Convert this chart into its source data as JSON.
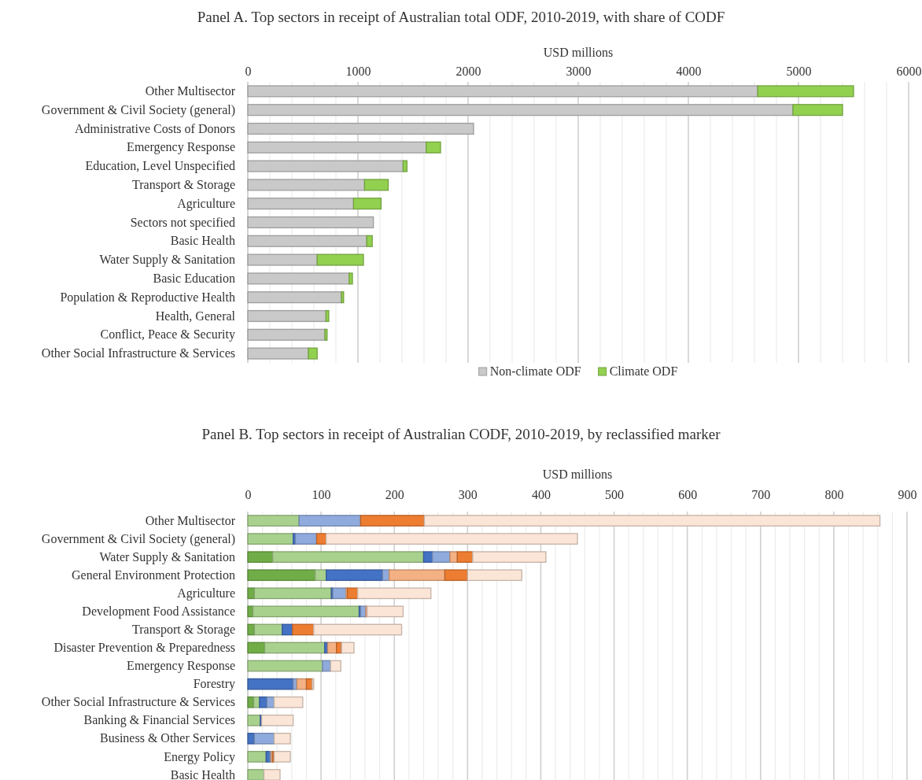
{
  "chart_data": [
    {
      "type": "bar",
      "orientation": "horizontal",
      "stacked": true,
      "title": "Panel A. Top sectors in receipt of Australian total ODF, 2010-2019, with share of CODF",
      "xlabel": "USD millions",
      "categories": [
        "Other Multisector",
        "Government & Civil Society (general)",
        "Administrative Costs of Donors",
        "Emergency Response",
        "Education, Level Unspecified",
        "Transport & Storage",
        "Agriculture",
        "Sectors not specified",
        "Basic Health",
        "Water Supply & Sanitation",
        "Basic Education",
        "Population & Reproductive Health",
        "Health, General",
        "Conflict, Peace & Security",
        "Other Social Infrastructure & Services"
      ],
      "series": [
        {
          "name": "Non-climate ODF",
          "color": "#c9c9c9",
          "values": [
            4630,
            4950,
            2050,
            1620,
            1410,
            1060,
            960,
            1140,
            1080,
            630,
            920,
            850,
            710,
            700,
            550
          ]
        },
        {
          "name": "Climate ODF",
          "color": "#92d050",
          "values": [
            870,
            450,
            0,
            130,
            35,
            215,
            250,
            0,
            50,
            420,
            30,
            20,
            25,
            20,
            80
          ]
        }
      ],
      "xlim": [
        0,
        6000
      ],
      "xticks": [
        0,
        {
          "value": 200,
          "label": null
        },
        {
          "value": 400,
          "label": null
        },
        {
          "value": 600,
          "label": null
        },
        {
          "value": 800,
          "label": null
        },
        1000,
        {
          "value": 1200,
          "label": null
        },
        {
          "value": 1400,
          "label": null
        },
        {
          "value": 1600,
          "label": null
        },
        {
          "value": 1800,
          "label": null
        },
        2000,
        {
          "value": 2200,
          "label": null
        },
        {
          "value": 2400,
          "label": null
        },
        {
          "value": 2600,
          "label": null
        },
        {
          "value": 2800,
          "label": null
        },
        3000,
        {
          "value": 3200,
          "label": null
        },
        {
          "value": 3400,
          "label": null
        },
        {
          "value": 3600,
          "label": null
        },
        {
          "value": 3800,
          "label": null
        },
        4000,
        {
          "value": 4200,
          "label": null
        },
        {
          "value": 4400,
          "label": null
        },
        {
          "value": 4600,
          "label": null
        },
        {
          "value": 4800,
          "label": null
        },
        5000,
        {
          "value": 5200,
          "label": null
        },
        {
          "value": 5400,
          "label": null
        },
        {
          "value": 5600,
          "label": null
        },
        {
          "value": 5800,
          "label": null
        },
        6000
      ],
      "grid": "x",
      "legend": "bottom"
    },
    {
      "type": "bar",
      "orientation": "horizontal",
      "stacked": true,
      "title": "Panel B. Top sectors in receipt of Australian CODF, 2010-2019, by reclassified marker",
      "xlabel": "USD millions",
      "categories": [
        "Other Multisector",
        "Government & Civil Society (general)",
        "Water Supply & Sanitation",
        "General Environment Protection",
        "Agriculture",
        "Development Food Assistance",
        "Transport & Storage",
        "Disaster Prevention & Preparedness",
        "Emergency Response",
        "Forestry",
        "Other Social Infrastructure & Services",
        "Banking & Financial Services",
        "Business & Other Services",
        "Energy Policy",
        "Basic Health"
      ],
      "series": [
        {
          "color": "#70ad47",
          "values": [
            0,
            0,
            34,
            92,
            9,
            7,
            9,
            23,
            0,
            0,
            8,
            0,
            0,
            0,
            0
          ]
        },
        {
          "color": "#a9d18e",
          "values": [
            70,
            62,
            206,
            15,
            105,
            145,
            38,
            82,
            102,
            0,
            8,
            17,
            0,
            25,
            22
          ]
        },
        {
          "color": "#4472c4",
          "values": [
            0,
            3,
            12,
            77,
            2,
            2,
            14,
            4,
            0,
            62,
            10,
            2,
            9,
            5,
            null
          ]
        },
        {
          "color": "#8faadc",
          "values": [
            84,
            29,
            24,
            9,
            18,
            7,
            0,
            0,
            11,
            5,
            10,
            0,
            27,
            2,
            0
          ]
        },
        {
          "color": "#f4b183",
          "values": [
            0,
            0,
            10,
            76,
            2,
            2,
            0,
            12,
            0,
            13,
            0,
            0,
            0,
            2,
            0
          ]
        },
        {
          "color": "#ed7d31",
          "values": [
            87,
            13,
            21,
            31,
            14,
            0,
            29,
            7,
            0,
            8,
            0,
            0,
            0,
            2,
            0
          ]
        },
        {
          "color": "#fbe5d6",
          "values": [
            622,
            343,
            100,
            74,
            100,
            49,
            120,
            17,
            14,
            2,
            39,
            43,
            22,
            22,
            22
          ]
        }
      ],
      "xlim": [
        0,
        900
      ],
      "xticks": [
        0,
        {
          "value": 20,
          "label": null
        },
        {
          "value": 40,
          "label": null
        },
        {
          "value": 60,
          "label": null
        },
        {
          "value": 80,
          "label": null
        },
        100,
        {
          "value": 120,
          "label": null
        },
        {
          "value": 140,
          "label": null
        },
        {
          "value": 160,
          "label": null
        },
        {
          "value": 180,
          "label": null
        },
        200,
        {
          "value": 220,
          "label": null
        },
        {
          "value": 240,
          "label": null
        },
        {
          "value": 260,
          "label": null
        },
        {
          "value": 280,
          "label": null
        },
        300,
        {
          "value": 320,
          "label": null
        },
        {
          "value": 340,
          "label": null
        },
        {
          "value": 360,
          "label": null
        },
        {
          "value": 380,
          "label": null
        },
        400,
        {
          "value": 420,
          "label": null
        },
        {
          "value": 440,
          "label": null
        },
        {
          "value": 460,
          "label": null
        },
        {
          "value": 480,
          "label": null
        },
        500,
        {
          "value": 520,
          "label": null
        },
        {
          "value": 540,
          "label": null
        },
        {
          "value": 560,
          "label": null
        },
        {
          "value": 580,
          "label": null
        },
        600,
        {
          "value": 620,
          "label": null
        },
        {
          "value": 640,
          "label": null
        },
        {
          "value": 660,
          "label": null
        },
        {
          "value": 680,
          "label": null
        },
        700,
        {
          "value": 720,
          "label": null
        },
        {
          "value": 740,
          "label": null
        },
        {
          "value": 760,
          "label": null
        },
        {
          "value": 780,
          "label": null
        },
        800,
        {
          "value": 820,
          "label": null
        },
        {
          "value": 840,
          "label": null
        },
        {
          "value": 860,
          "label": null
        },
        {
          "value": 880,
          "label": null
        },
        900
      ],
      "grid": "x"
    }
  ]
}
